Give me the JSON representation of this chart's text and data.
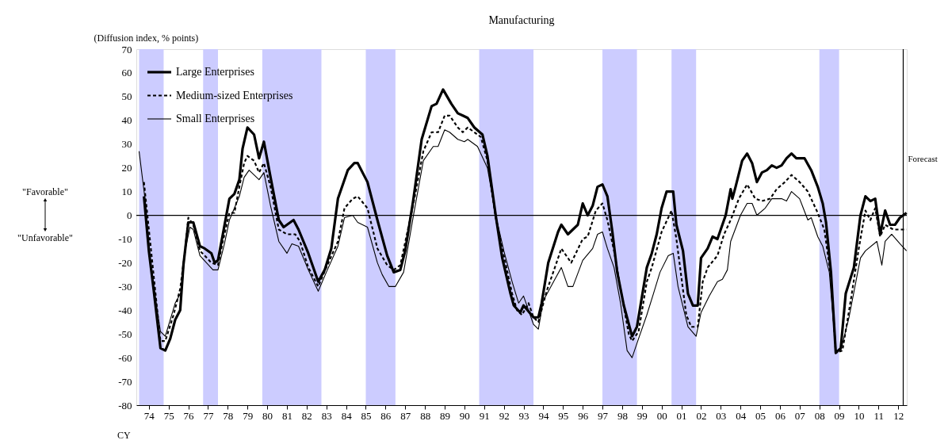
{
  "chart_data": {
    "type": "line",
    "title": "Manufacturing",
    "ylabel": "(Diffusion index, % points)",
    "annotations": [
      "\"Favorable\"",
      "\"Unfavorable\"",
      "CY"
    ],
    "xlim": [
      "1973-11-11",
      "2012-12-06"
    ],
    "xticks": [
      {
        "value": "1974-07",
        "label": "74"
      },
      {
        "value": "1975-07",
        "label": "75"
      },
      {
        "value": "1976-07",
        "label": "76"
      },
      {
        "value": "1977-07",
        "label": "77"
      },
      {
        "value": "1978-07",
        "label": "78"
      },
      {
        "value": "1979-07",
        "label": "79"
      },
      {
        "value": "1980-07",
        "label": "80"
      },
      {
        "value": "1981-07",
        "label": "81"
      },
      {
        "value": "1982-07",
        "label": "82"
      },
      {
        "value": "1983-07",
        "label": "83"
      },
      {
        "value": "1984-07",
        "label": "84"
      },
      {
        "value": "1985-07",
        "label": "85"
      },
      {
        "value": "1986-07",
        "label": "86"
      },
      {
        "value": "1987-07",
        "label": "87"
      },
      {
        "value": "1988-07",
        "label": "88"
      },
      {
        "value": "1989-07",
        "label": "89"
      },
      {
        "value": "1990-07",
        "label": "90"
      },
      {
        "value": "1991-07",
        "label": "91"
      },
      {
        "value": "1992-07",
        "label": "92"
      },
      {
        "value": "1993-07",
        "label": "93"
      },
      {
        "value": "1994-07",
        "label": "94"
      },
      {
        "value": "1995-07",
        "label": "95"
      },
      {
        "value": "1996-07",
        "label": "96"
      },
      {
        "value": "1997-07",
        "label": "97"
      },
      {
        "value": "1998-07",
        "label": "98"
      },
      {
        "value": "1999-07",
        "label": "99"
      },
      {
        "value": "2000-07",
        "label": "00"
      },
      {
        "value": "2001-07",
        "label": "01"
      },
      {
        "value": "2002-07",
        "label": "02"
      },
      {
        "value": "2003-07",
        "label": "03"
      },
      {
        "value": "2004-07",
        "label": "04"
      },
      {
        "value": "2005-07",
        "label": "05"
      },
      {
        "value": "2006-07",
        "label": "06"
      },
      {
        "value": "2007-07",
        "label": "07"
      },
      {
        "value": "2008-07",
        "label": "08"
      },
      {
        "value": "2009-07",
        "label": "09"
      },
      {
        "value": "2010-07",
        "label": "10"
      },
      {
        "value": "2011-07",
        "label": "11"
      },
      {
        "value": "2012-07",
        "label": "12"
      }
    ],
    "ylim": [
      -80,
      70
    ],
    "yticks": [
      -80,
      -70,
      -60,
      -50,
      -40,
      -30,
      -20,
      -10,
      0,
      10,
      20,
      30,
      40,
      50,
      60,
      70
    ],
    "legend": "top left",
    "bands": [
      {
        "axis": "x",
        "from": "1974-01",
        "to": "1975-04",
        "color": "#ccccff"
      },
      {
        "axis": "x",
        "from": "1977-04",
        "to": "1978-01",
        "color": "#ccccff"
      },
      {
        "axis": "x",
        "from": "1980-04",
        "to": "1983-04",
        "color": "#ccccff"
      },
      {
        "axis": "x",
        "from": "1985-07",
        "to": "1987-01",
        "color": "#ccccff"
      },
      {
        "axis": "x",
        "from": "1991-04",
        "to": "1994-01",
        "color": "#ccccff"
      },
      {
        "axis": "x",
        "from": "1997-07",
        "to": "1999-04",
        "color": "#ccccff"
      },
      {
        "axis": "x",
        "from": "2001-01",
        "to": "2002-04",
        "color": "#ccccff"
      },
      {
        "axis": "x",
        "from": "2008-07",
        "to": "2009-07",
        "color": "#ccccff"
      }
    ],
    "ref_lines": [
      {
        "axis": "y",
        "value": 0,
        "color": "#000000"
      },
      {
        "axis": "x",
        "value": "2012-10",
        "label": "Forecast",
        "color": "#000000"
      }
    ],
    "series": [
      {
        "name": "Large Enterprises",
        "color": "#000000",
        "line_style": "solid",
        "x": [
          "1974-04",
          "1974-07",
          "1974-10",
          "1975-02",
          "1975-05",
          "1975-08",
          "1975-11",
          "1976-02",
          "1976-04",
          "1976-07",
          "1976-10",
          "1977-02",
          "1977-05",
          "1977-09",
          "1977-11",
          "1978-01",
          "1978-04",
          "1978-08",
          "1978-11",
          "1979-02",
          "1979-04",
          "1979-07",
          "1979-11",
          "1980-02",
          "1980-05",
          "1980-09",
          "1981-02",
          "1981-05",
          "1981-11",
          "1982-02",
          "1982-08",
          "1983-02",
          "1983-06",
          "1983-10",
          "1984-02",
          "1984-08",
          "1984-12",
          "1985-02",
          "1985-08",
          "1986-02",
          "1986-08",
          "1986-12",
          "1987-04",
          "1987-07",
          "1987-12",
          "1988-05",
          "1988-11",
          "1989-02",
          "1989-06",
          "1989-11",
          "1990-03",
          "1990-06",
          "1990-09",
          "1991-01",
          "1991-06",
          "1991-09",
          "1992-02",
          "1992-06",
          "1992-11",
          "1993-01",
          "1993-05",
          "1993-07",
          "1994-01",
          "1994-04",
          "1994-06",
          "1994-10",
          "1995-04",
          "1995-06",
          "1995-10",
          "1996-04",
          "1996-07",
          "1996-10",
          "1997-01",
          "1997-04",
          "1997-07",
          "1997-10",
          "1998-01",
          "1998-04",
          "1998-08",
          "1999-01",
          "1999-04",
          "1999-10",
          "2000-01",
          "2000-04",
          "2000-07",
          "2000-10",
          "2001-02",
          "2001-04",
          "2001-08",
          "2001-11",
          "2002-02",
          "2002-05",
          "2002-07",
          "2002-11",
          "2003-02",
          "2003-05",
          "2003-07",
          "2003-10",
          "2004-01",
          "2004-02",
          "2004-04",
          "2004-08",
          "2004-11",
          "2005-02",
          "2005-05",
          "2005-08",
          "2005-11",
          "2006-02",
          "2006-05",
          "2006-08",
          "2006-11",
          "2007-02",
          "2007-05",
          "2007-10",
          "2008-02",
          "2008-06",
          "2008-09",
          "2008-11",
          "2009-02",
          "2009-05",
          "2009-08",
          "2009-11",
          "2010-04",
          "2010-08",
          "2010-11",
          "2011-02",
          "2011-05",
          "2011-08",
          "2011-11",
          "2012-02",
          "2012-05",
          "2012-08",
          "2012-12"
        ],
        "values": [
          8,
          -15,
          -32,
          -56,
          -57,
          -52,
          -44,
          -40,
          -21,
          -3,
          -3,
          -13,
          -14,
          -16,
          -20,
          -19,
          -8,
          7,
          9,
          15,
          28,
          37,
          34,
          24,
          31,
          16,
          -2,
          -5,
          -2,
          -6,
          -16,
          -28,
          -23,
          -14,
          7,
          19,
          22,
          22,
          14,
          -2,
          -17,
          -24,
          -23,
          -15,
          7,
          32,
          46,
          47,
          53,
          47,
          43,
          42,
          41,
          37,
          34,
          25,
          0,
          -18,
          -33,
          -38,
          -41,
          -38,
          -43,
          -43,
          -37,
          -20,
          -7,
          -4,
          -8,
          -4,
          5,
          0,
          4,
          12,
          13,
          8,
          -7,
          -24,
          -38,
          -51,
          -47,
          -22,
          -16,
          -8,
          3,
          10,
          10,
          -4,
          -15,
          -33,
          -38,
          -38,
          -18,
          -14,
          -9,
          -10,
          -6,
          0,
          11,
          7,
          12,
          23,
          26,
          22,
          14,
          18,
          19,
          21,
          20,
          21,
          24,
          26,
          24,
          24,
          19,
          12,
          5,
          -3,
          -24,
          -58,
          -56,
          -33,
          -22,
          0,
          8,
          6,
          7,
          -8,
          2,
          -4,
          -4,
          -1,
          1
        ]
      },
      {
        "name": "Medium-sized Enterprises",
        "color": "#000000",
        "line_style": "dashed",
        "x": [
          "1974-04",
          "1975-02",
          "1975-05",
          "1975-10",
          "1976-02",
          "1976-05",
          "1976-07",
          "1976-10",
          "1977-02",
          "1977-05",
          "1977-09",
          "1978-01",
          "1978-04",
          "1978-08",
          "1978-11",
          "1979-02",
          "1979-05",
          "1979-07",
          "1979-11",
          "1980-02",
          "1980-05",
          "1980-09",
          "1981-02",
          "1981-07",
          "1981-12",
          "1982-03",
          "1982-08",
          "1983-02",
          "1983-07",
          "1984-02",
          "1984-06",
          "1984-11",
          "1985-02",
          "1985-08",
          "1986-02",
          "1986-08",
          "1986-12",
          "1987-04",
          "1987-12",
          "1988-06",
          "1988-11",
          "1989-03",
          "1989-07",
          "1989-10",
          "1990-03",
          "1990-06",
          "1990-09",
          "1991-01",
          "1991-05",
          "1991-09",
          "1992-02",
          "1992-07",
          "1992-12",
          "1993-03",
          "1993-06",
          "1993-10",
          "1994-01",
          "1994-04",
          "1994-09",
          "1995-02",
          "1995-06",
          "1995-12",
          "1996-07",
          "1996-10",
          "1997-03",
          "1997-07",
          "1997-10",
          "1998-02",
          "1998-06",
          "1998-11",
          "1999-01",
          "1999-05",
          "1999-10",
          "2000-01",
          "2000-07",
          "2001-01",
          "2001-04",
          "2001-10",
          "2002-01",
          "2002-05",
          "2002-08",
          "2002-11",
          "2003-05",
          "2003-09",
          "2004-01",
          "2004-06",
          "2004-11",
          "2005-04",
          "2005-08",
          "2006-01",
          "2006-05",
          "2006-10",
          "2007-02",
          "2007-07",
          "2007-12",
          "2008-06",
          "2008-10",
          "2009-02",
          "2009-05",
          "2009-09",
          "2010-02",
          "2010-07",
          "2010-11",
          "2011-02",
          "2011-05",
          "2011-08",
          "2011-11",
          "2012-04",
          "2012-08",
          "2012-12"
        ],
        "values": [
          14,
          -53,
          -53,
          -42,
          -31,
          -15,
          -1,
          -4,
          -15,
          -17,
          -20,
          -21,
          -11,
          1,
          1,
          12,
          22,
          25,
          23,
          18,
          22,
          12,
          -6,
          -8,
          -8,
          -11,
          -22,
          -30,
          -22,
          -11,
          3,
          7,
          8,
          3,
          -14,
          -21,
          -23,
          -21,
          5,
          27,
          35,
          35,
          42,
          42,
          37,
          35,
          37,
          35,
          33,
          23,
          -1,
          -17,
          -33,
          -40,
          -42,
          -37,
          -43,
          -45,
          -32,
          -22,
          -14,
          -20,
          -10,
          -9,
          2,
          5,
          -2,
          -15,
          -31,
          -50,
          -53,
          -49,
          -28,
          -22,
          -7,
          2,
          -10,
          -42,
          -47,
          -47,
          -28,
          -22,
          -17,
          -8,
          -2,
          7,
          13,
          7,
          6,
          7,
          11,
          14,
          17,
          14,
          10,
          1,
          -6,
          -26,
          -58,
          -57,
          -36,
          -14,
          2,
          -2,
          3,
          -9,
          -4,
          -6,
          -6,
          -6
        ]
      },
      {
        "name": "Small Enterprises",
        "color": "#000000",
        "line_style": "solid",
        "x": [
          "1974-01",
          "1974-05",
          "1974-08",
          "1974-11",
          "1975-02",
          "1975-05",
          "1975-11",
          "1976-03",
          "1976-05",
          "1976-08",
          "1976-10",
          "1977-02",
          "1977-06",
          "1977-10",
          "1978-01",
          "1978-05",
          "1978-08",
          "1978-11",
          "1979-02",
          "1979-05",
          "1979-08",
          "1979-11",
          "1980-02",
          "1980-05",
          "1980-09",
          "1981-02",
          "1981-07",
          "1981-10",
          "1982-02",
          "1982-08",
          "1983-02",
          "1983-07",
          "1984-02",
          "1984-06",
          "1984-11",
          "1985-02",
          "1985-08",
          "1986-02",
          "1986-05",
          "1986-09",
          "1987-01",
          "1987-06",
          "1987-12",
          "1988-06",
          "1988-12",
          "1989-03",
          "1989-07",
          "1989-10",
          "1990-03",
          "1990-07",
          "1990-09",
          "1991-03",
          "1991-09",
          "1992-02",
          "1992-07",
          "1992-12",
          "1993-04",
          "1993-07",
          "1994-01",
          "1994-04",
          "1994-07",
          "1995-02",
          "1995-06",
          "1995-10",
          "1996-01",
          "1996-07",
          "1997-01",
          "1997-04",
          "1997-07",
          "1997-10",
          "1998-02",
          "1998-06",
          "1998-10",
          "1999-01",
          "1999-05",
          "1999-10",
          "2000-02",
          "2000-06",
          "2000-11",
          "2001-02",
          "2001-05",
          "2001-11",
          "2002-04",
          "2002-07",
          "2002-12",
          "2003-05",
          "2003-08",
          "2003-11",
          "2004-01",
          "2004-07",
          "2004-11",
          "2005-02",
          "2005-05",
          "2005-10",
          "2006-02",
          "2006-08",
          "2006-11",
          "2007-02",
          "2007-07",
          "2007-12",
          "2008-02",
          "2008-06",
          "2008-09",
          "2009-01",
          "2009-05",
          "2009-08",
          "2010-01",
          "2010-08",
          "2010-11",
          "2011-06",
          "2011-09",
          "2011-11",
          "2012-03",
          "2012-08",
          "2012-12"
        ],
        "values": [
          27,
          5,
          -20,
          -35,
          -49,
          -51,
          -37,
          -32,
          -15,
          -5,
          -6,
          -17,
          -20,
          -23,
          -23,
          -12,
          -2,
          3,
          8,
          16,
          19,
          17,
          15,
          18,
          4,
          -11,
          -16,
          -12,
          -13,
          -23,
          -32,
          -24,
          -13,
          -1,
          0,
          -3,
          -5,
          -20,
          -25,
          -30,
          -30,
          -24,
          0,
          23,
          29,
          29,
          36,
          35,
          32,
          31,
          32,
          29,
          20,
          0,
          -15,
          -28,
          -37,
          -34,
          -46,
          -48,
          -36,
          -27,
          -22,
          -30,
          -30,
          -19,
          -14,
          -8,
          -7,
          -14,
          -22,
          -37,
          -57,
          -60,
          -52,
          -42,
          -33,
          -24,
          -17,
          -16,
          -30,
          -47,
          -51,
          -41,
          -34,
          -28,
          -27,
          -23,
          -11,
          0,
          5,
          5,
          0,
          3,
          7,
          7,
          6,
          10,
          7,
          -2,
          -1,
          -9,
          -13,
          -24,
          -57,
          -57,
          -43,
          -18,
          -15,
          -11,
          -21,
          -11,
          -8,
          -12,
          -15
        ]
      }
    ]
  }
}
